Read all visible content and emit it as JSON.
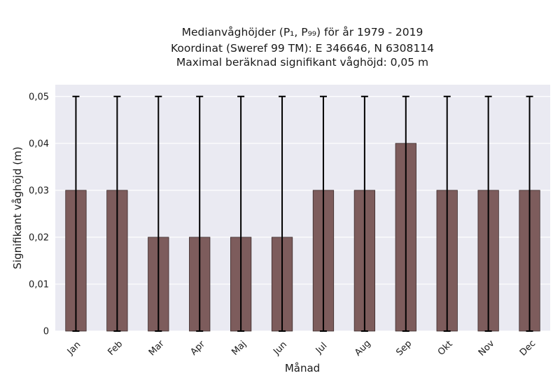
{
  "chart_data": {
    "type": "bar",
    "title_lines": [
      "Medianvåghöjder (P₁, P₉₉) för år 1979 - 2019",
      "Koordinat (Sweref 99 TM): E 346646, N 6308114",
      "Maximal beräknad signifikant våghöjd: 0,05 m"
    ],
    "xlabel": "Månad",
    "ylabel": "Signifikant våghöjd (m)",
    "categories": [
      "Jan",
      "Feb",
      "Mar",
      "Apr",
      "Maj",
      "Jun",
      "Jul",
      "Aug",
      "Sep",
      "Okt",
      "Nov",
      "Dec"
    ],
    "values": [
      0.03,
      0.03,
      0.02,
      0.02,
      0.02,
      0.02,
      0.03,
      0.03,
      0.04,
      0.03,
      0.03,
      0.03
    ],
    "error_low": [
      0,
      0,
      0,
      0,
      0,
      0,
      0,
      0,
      0,
      0,
      0,
      0
    ],
    "error_high": [
      0.05,
      0.05,
      0.05,
      0.05,
      0.05,
      0.05,
      0.05,
      0.05,
      0.05,
      0.05,
      0.05,
      0.05
    ],
    "ylim": [
      0,
      0.0525
    ],
    "yticks": [
      0,
      0.01,
      0.02,
      0.03,
      0.04,
      0.05
    ],
    "ytick_labels": [
      "0",
      "0,01",
      "0,02",
      "0,03",
      "0,04",
      "0,05"
    ],
    "grid": true,
    "colors": {
      "bar_fill": "#7d5c5c",
      "bar_edge": "#3a2a2a",
      "error_bar": "#000000",
      "plot_background": "#eaeaf2",
      "grid": "#ffffff"
    }
  }
}
